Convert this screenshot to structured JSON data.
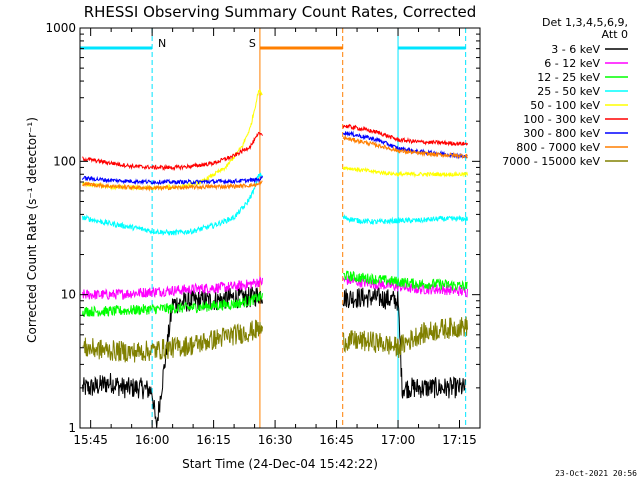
{
  "chart_data": {
    "type": "line",
    "title": "RHESSI Observing Summary Count Rates, Corrected",
    "xlabel": "Start Time (24-Dec-04 15:42:22)",
    "ylabel": "Corrected Count Rate (s⁻¹ detector⁻¹)",
    "yscale": "log",
    "xlim_minutes_after_15_00": [
      42.4,
      140.0
    ],
    "ylim": [
      1,
      1000
    ],
    "x_tick_labels": [
      "15:45",
      "16:00",
      "16:15",
      "16:30",
      "16:45",
      "17:00",
      "17:15"
    ],
    "x_tick_minutes": [
      45,
      60,
      75,
      90,
      105,
      120,
      135
    ],
    "y_tick_labels": [
      "1",
      "10",
      "100",
      "1000"
    ],
    "y_tick_values": [
      1,
      10,
      100,
      1000
    ],
    "legend_header": [
      "Det 1,3,4,5,6,9,",
      "Att 0"
    ],
    "legend_position": "right",
    "footer": "23-Oct-2021 20:56",
    "markers": [
      {
        "label": "N",
        "color": "#00e5ff",
        "start": 42.4,
        "end": 60.0,
        "style": "night"
      },
      {
        "label": "S",
        "color": "#ff7f00",
        "start": 86.3,
        "end": 106.5,
        "style": "saa"
      },
      {
        "label": "",
        "color": "#00e5ff",
        "start": 120.0,
        "end": 136.5,
        "style": "night"
      }
    ],
    "gaps": [
      [
        87,
        106.5
      ]
    ],
    "series": [
      {
        "name": "3 - 6 keV",
        "color": "#000000",
        "pts": [
          [
            43,
            2
          ],
          [
            45,
            2
          ],
          [
            50,
            2.2
          ],
          [
            53,
            2
          ],
          [
            57,
            2
          ],
          [
            60,
            1.9
          ],
          [
            61,
            1
          ],
          [
            65,
            8.5
          ],
          [
            70,
            9
          ],
          [
            75,
            9
          ],
          [
            80,
            9.5
          ],
          [
            84,
            9.5
          ],
          [
            86,
            10
          ],
          [
            106.5,
            9.5
          ],
          [
            110,
            9.5
          ],
          [
            115,
            9.5
          ],
          [
            120,
            9
          ],
          [
            121,
            2
          ],
          [
            125,
            2
          ],
          [
            130,
            2
          ],
          [
            136,
            2
          ],
          [
            136.5,
            2
          ]
        ],
        "noise": 0.08
      },
      {
        "name": "6 - 12 keV",
        "color": "#ff00ff",
        "pts": [
          [
            43,
            10
          ],
          [
            50,
            10
          ],
          [
            60,
            10.5
          ],
          [
            70,
            11
          ],
          [
            80,
            11.5
          ],
          [
            84,
            12
          ],
          [
            86,
            12.5
          ],
          [
            106.5,
            13
          ],
          [
            110,
            12.5
          ],
          [
            115,
            12
          ],
          [
            120,
            11.5
          ],
          [
            125,
            11
          ],
          [
            130,
            11
          ],
          [
            137,
            10.5
          ]
        ],
        "noise": 0.04
      },
      {
        "name": "12 - 25 keV",
        "color": "#00ff00",
        "pts": [
          [
            43,
            7.5
          ],
          [
            50,
            7.5
          ],
          [
            60,
            7.8
          ],
          [
            70,
            8
          ],
          [
            80,
            8.5
          ],
          [
            84,
            9
          ],
          [
            86,
            9.5
          ],
          [
            106.5,
            14
          ],
          [
            110,
            13.5
          ],
          [
            115,
            13
          ],
          [
            120,
            12.5
          ],
          [
            125,
            12
          ],
          [
            130,
            12
          ],
          [
            137,
            11.5
          ]
        ],
        "noise": 0.04
      },
      {
        "name": "25 - 50 keV",
        "color": "#00ffff",
        "pts": [
          [
            43,
            38
          ],
          [
            48,
            35
          ],
          [
            55,
            32
          ],
          [
            60,
            30
          ],
          [
            65,
            29
          ],
          [
            70,
            30
          ],
          [
            75,
            33
          ],
          [
            80,
            38
          ],
          [
            83,
            48
          ],
          [
            85,
            62
          ],
          [
            86,
            80
          ],
          [
            106.5,
            38
          ],
          [
            110,
            36
          ],
          [
            115,
            35
          ],
          [
            120,
            36
          ],
          [
            125,
            36
          ],
          [
            130,
            37
          ],
          [
            137,
            37
          ]
        ],
        "noise": 0.02
      },
      {
        "name": "50 - 100 keV",
        "color": "#ffff00",
        "pts": [
          [
            43,
            68
          ],
          [
            50,
            64
          ],
          [
            60,
            63
          ],
          [
            68,
            65
          ],
          [
            72,
            70
          ],
          [
            78,
            90
          ],
          [
            82,
            130
          ],
          [
            84,
            180
          ],
          [
            86,
            340
          ],
          [
            106.5,
            90
          ],
          [
            110,
            87
          ],
          [
            115,
            83
          ],
          [
            120,
            80
          ],
          [
            125,
            80
          ],
          [
            130,
            80
          ],
          [
            137,
            80
          ]
        ],
        "noise": 0.015
      },
      {
        "name": "100 - 300 keV",
        "color": "#ff0000",
        "pts": [
          [
            43,
            105
          ],
          [
            50,
            97
          ],
          [
            55,
            92
          ],
          [
            60,
            90
          ],
          [
            66,
            90
          ],
          [
            70,
            92
          ],
          [
            75,
            97
          ],
          [
            80,
            110
          ],
          [
            84,
            130
          ],
          [
            86,
            160
          ],
          [
            106.5,
            185
          ],
          [
            110,
            178
          ],
          [
            115,
            165
          ],
          [
            120,
            145
          ],
          [
            125,
            140
          ],
          [
            130,
            138
          ],
          [
            137,
            135
          ]
        ],
        "noise": 0.015
      },
      {
        "name": "300 - 800 keV",
        "color": "#0000ff",
        "pts": [
          [
            43,
            75
          ],
          [
            50,
            72
          ],
          [
            60,
            70
          ],
          [
            70,
            70
          ],
          [
            80,
            71
          ],
          [
            84,
            72
          ],
          [
            86,
            73
          ],
          [
            106.5,
            165
          ],
          [
            110,
            157
          ],
          [
            115,
            145
          ],
          [
            120,
            125
          ],
          [
            125,
            118
          ],
          [
            130,
            115
          ],
          [
            137,
            108
          ]
        ],
        "noise": 0.015
      },
      {
        "name": "800 - 7000 keV",
        "color": "#ff7f00",
        "pts": [
          [
            43,
            68
          ],
          [
            50,
            65
          ],
          [
            60,
            63
          ],
          [
            70,
            64
          ],
          [
            80,
            65
          ],
          [
            84,
            66
          ],
          [
            86,
            67
          ],
          [
            106.5,
            150
          ],
          [
            110,
            143
          ],
          [
            115,
            132
          ],
          [
            120,
            120
          ],
          [
            125,
            115
          ],
          [
            130,
            112
          ],
          [
            137,
            110
          ]
        ],
        "noise": 0.015
      },
      {
        "name": "7000 - 15000 keV",
        "color": "#808000",
        "pts": [
          [
            43,
            4
          ],
          [
            50,
            3.8
          ],
          [
            55,
            3.7
          ],
          [
            60,
            3.8
          ],
          [
            65,
            4
          ],
          [
            70,
            4.2
          ],
          [
            75,
            4.6
          ],
          [
            80,
            5
          ],
          [
            84,
            5.3
          ],
          [
            86,
            5.5
          ],
          [
            106.5,
            4.5
          ],
          [
            110,
            4.5
          ],
          [
            115,
            4.4
          ],
          [
            120,
            4
          ],
          [
            125,
            5
          ],
          [
            130,
            5.5
          ],
          [
            137,
            5.8
          ]
        ],
        "noise": 0.08
      }
    ]
  }
}
